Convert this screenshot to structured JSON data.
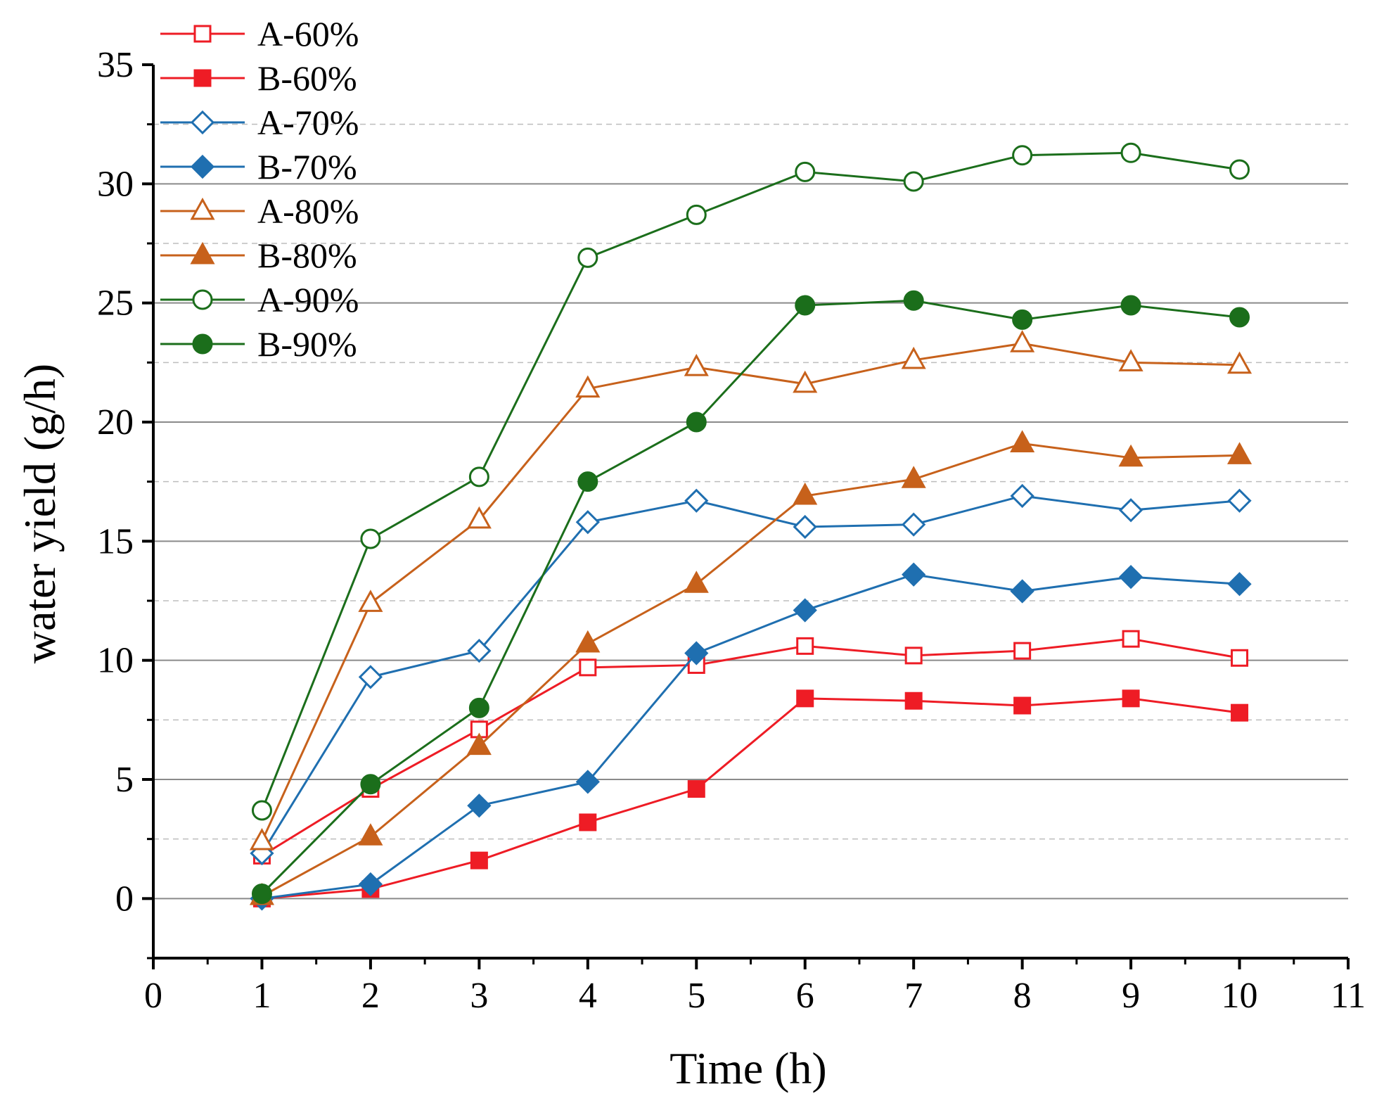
{
  "chart_data": {
    "type": "line",
    "title": "",
    "xlabel": "Time (h)",
    "ylabel": "water yield (g/h)",
    "xlim": [
      0,
      11
    ],
    "ylim": [
      -2.5,
      35
    ],
    "x_ticks": [
      0,
      1,
      2,
      3,
      4,
      5,
      6,
      7,
      8,
      9,
      10,
      11
    ],
    "y_ticks": [
      0,
      5,
      10,
      15,
      20,
      25,
      30,
      35
    ],
    "grid": "horizontal",
    "legend_position": "top-left",
    "x": [
      1,
      2,
      3,
      4,
      5,
      6,
      7,
      8,
      9,
      10
    ],
    "series": [
      {
        "name": "A-60%",
        "color": "#ee1c25",
        "marker": "square",
        "filled": false,
        "values": [
          1.8,
          4.6,
          7.1,
          9.7,
          9.8,
          10.6,
          10.2,
          10.4,
          10.9,
          10.1
        ]
      },
      {
        "name": "B-60%",
        "color": "#ee1c25",
        "marker": "square",
        "filled": true,
        "values": [
          0.0,
          0.4,
          1.6,
          3.2,
          4.6,
          8.4,
          8.3,
          8.1,
          8.4,
          7.8
        ]
      },
      {
        "name": "A-70%",
        "color": "#1f6fb0",
        "marker": "diamond",
        "filled": false,
        "values": [
          1.9,
          9.3,
          10.4,
          15.8,
          16.7,
          15.6,
          15.7,
          16.9,
          16.3,
          16.7
        ]
      },
      {
        "name": "B-70%",
        "color": "#1f6fb0",
        "marker": "diamond",
        "filled": true,
        "values": [
          0.0,
          0.6,
          3.9,
          4.9,
          10.3,
          12.1,
          13.6,
          12.9,
          13.5,
          13.2
        ]
      },
      {
        "name": "A-80%",
        "color": "#c7611b",
        "marker": "triangle",
        "filled": false,
        "values": [
          2.4,
          12.4,
          15.9,
          21.4,
          22.3,
          21.6,
          22.6,
          23.3,
          22.5,
          22.4
        ]
      },
      {
        "name": "B-80%",
        "color": "#c7611b",
        "marker": "triangle",
        "filled": true,
        "values": [
          0.1,
          2.6,
          6.4,
          10.7,
          13.2,
          16.9,
          17.6,
          19.1,
          18.5,
          18.6
        ]
      },
      {
        "name": "A-90%",
        "color": "#1b6e1b",
        "marker": "circle",
        "filled": false,
        "values": [
          3.7,
          15.1,
          17.7,
          26.9,
          28.7,
          30.5,
          30.1,
          31.2,
          31.3,
          30.6
        ]
      },
      {
        "name": "B-90%",
        "color": "#1b6e1b",
        "marker": "circle",
        "filled": true,
        "values": [
          0.2,
          4.8,
          8.0,
          17.5,
          20.0,
          24.9,
          25.1,
          24.3,
          24.9,
          24.4
        ]
      }
    ]
  }
}
